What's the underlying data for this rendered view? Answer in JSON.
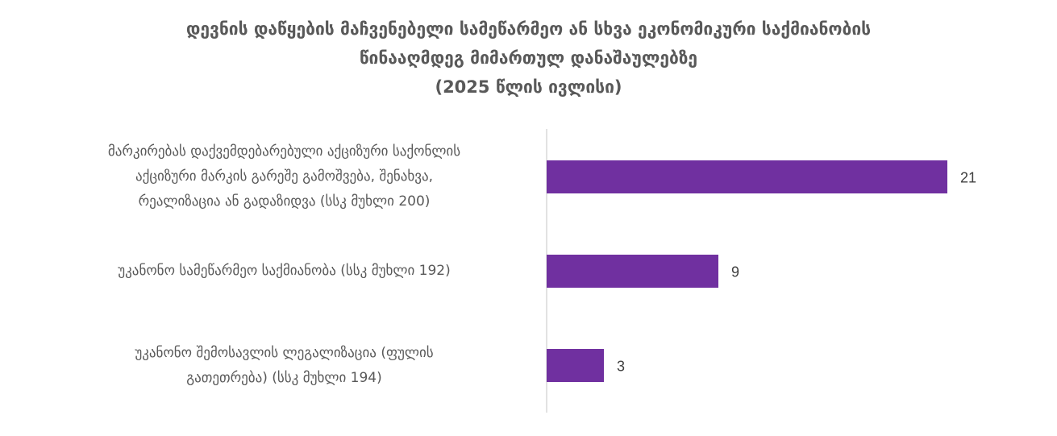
{
  "chart_data": {
    "type": "bar",
    "orientation": "horizontal",
    "title_lines": [
      "დევნის დაწყების მაჩვენებელი სამეწარმეო ან სხვა ეკონომიკური საქმიანობის",
      "წინააღმდეგ მიმართულ დანაშაულებზე",
      "(2025 წლის ივლისი)"
    ],
    "categories": [
      [
        "მარკირებას დაქვემდებარებული აქციზური საქონლის",
        "აქციზური მარკის გარეშე გამოშვება, შენახვა,",
        "რეალიზაცია ან გადაზიდვა (სსკ  მუხლი 200)"
      ],
      [
        "უკანონო სამეწარმეო საქმიანობა (სსკ  მუხლი 192)"
      ],
      [
        "უკანონო შემოსავლის ლეგალიზაცია (ფულის",
        "გათეთრება) (სსკ მუხლი 194)"
      ]
    ],
    "values": [
      21,
      9,
      3
    ],
    "data_labels": [
      "21",
      "9",
      "3"
    ],
    "xlim": [
      0,
      21
    ],
    "grid": false,
    "legend": "none",
    "bar_color": "#7030a0",
    "text_color": "#595959"
  }
}
